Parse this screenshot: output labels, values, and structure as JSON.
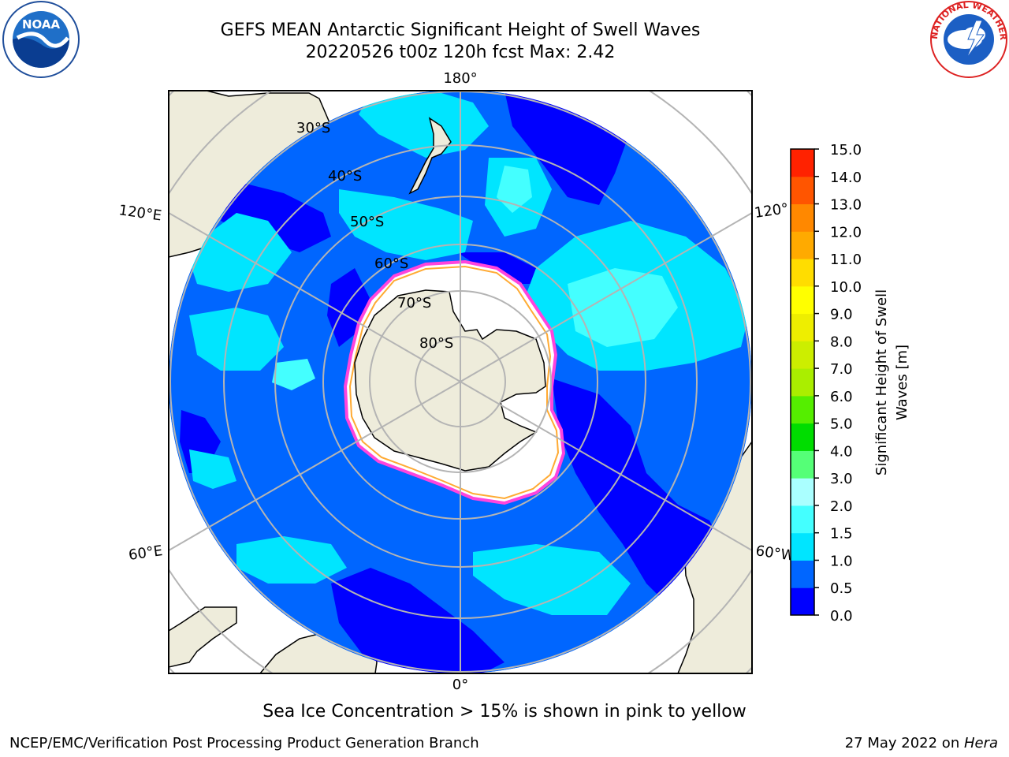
{
  "title": {
    "line1": "GEFS MEAN Antarctic Significant Height of Swell Waves",
    "line2": "20220526 t00z 120h fcst   Max: 2.42"
  },
  "map": {
    "longitude_labels": {
      "top": "180°",
      "bottom": "0°",
      "upper_left": "120°E",
      "upper_right": "120°",
      "lower_left": "60°E",
      "lower_right": "60°W"
    },
    "latitude_labels": [
      "30°S",
      "40°S",
      "50°S",
      "60°S",
      "70°S",
      "80°S"
    ],
    "colors": {
      "land": "#eeecdb",
      "ocean_outside": "#ffffff",
      "sea_ice": "#ffffff",
      "ice_edge_pink": "#ff44dd",
      "ice_edge_orange": "#ffaa33",
      "grid": "#b4b4b4"
    }
  },
  "colorbar": {
    "label_line1": "Significant Height of Swell",
    "label_line2": "Waves [m]",
    "ticks": [
      "0.0",
      "0.5",
      "1.0",
      "1.5",
      "2.0",
      "3.0",
      "4.0",
      "5.0",
      "6.0",
      "7.0",
      "8.0",
      "9.0",
      "10.0",
      "11.0",
      "12.0",
      "13.0",
      "14.0",
      "15.0"
    ],
    "colors": [
      "#0000ff",
      "#0066ff",
      "#00e5ff",
      "#44ffff",
      "#aaffff",
      "#55ff77",
      "#00dd00",
      "#55ee00",
      "#aaee00",
      "#ccee00",
      "#eeee00",
      "#ffff00",
      "#ffdd00",
      "#ffaa00",
      "#ff8800",
      "#ff5500",
      "#ff2200"
    ]
  },
  "caption": "Sea Ice Concentration > 15% is shown in pink to yellow",
  "footer": {
    "credit": "NCEP/EMC/Verification Post Processing Product Generation Branch",
    "date": "27 May 2022 on ",
    "machine": "Hera"
  }
}
